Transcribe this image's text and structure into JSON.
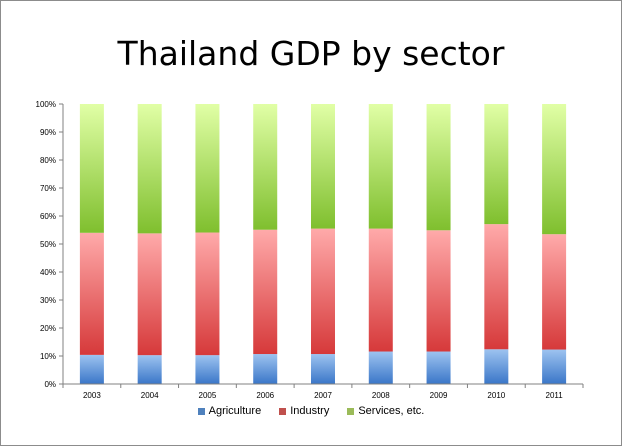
{
  "chart_data": {
    "type": "bar",
    "stacked": true,
    "normalized": true,
    "title": "Thailand GDP by sector",
    "xlabel": "",
    "ylabel": "",
    "categories": [
      "2003",
      "2004",
      "2005",
      "2006",
      "2007",
      "2008",
      "2009",
      "2010",
      "2011"
    ],
    "ylim": [
      0,
      100
    ],
    "yticks": [
      "0%",
      "10%",
      "20%",
      "30%",
      "40%",
      "50%",
      "60%",
      "70%",
      "80%",
      "90%",
      "100%"
    ],
    "grid": false,
    "legend_position": "bottom",
    "series": [
      {
        "name": "Agriculture",
        "color": "#4f81bd",
        "values": [
          10.4,
          10.3,
          10.3,
          10.7,
          10.7,
          11.6,
          11.6,
          12.4,
          12.3
        ]
      },
      {
        "name": "Industry",
        "color": "#c0504d",
        "values": [
          43.6,
          43.5,
          43.8,
          44.4,
          44.8,
          43.9,
          43.3,
          44.7,
          41.2
        ]
      },
      {
        "name": "Services, etc.",
        "color": "#9bbb59",
        "values": [
          46.0,
          46.2,
          45.9,
          44.9,
          44.5,
          44.5,
          45.1,
          42.9,
          46.5
        ]
      }
    ]
  }
}
